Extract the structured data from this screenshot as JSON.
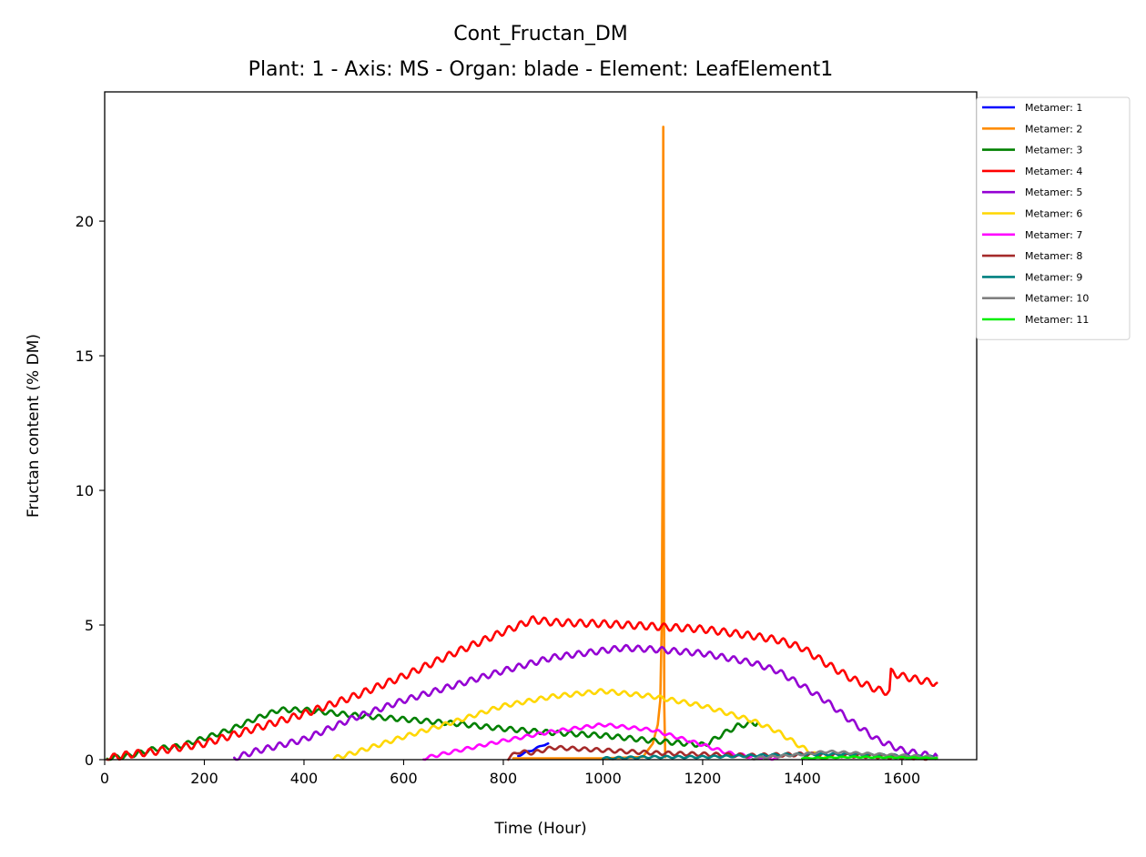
{
  "chart_data": {
    "type": "line",
    "title": "Cont_Fructan_DM",
    "subtitle": "Plant: 1 - Axis: MS - Organ: blade - Element: LeafElement1",
    "xlabel": "Time (Hour)",
    "ylabel": "Fructan content (% DM)",
    "xlim": [
      0,
      1750
    ],
    "ylim": [
      0,
      24.8
    ],
    "xticks": [
      0,
      200,
      400,
      600,
      800,
      1000,
      1200,
      1400,
      1600
    ],
    "yticks": [
      0,
      5,
      10,
      15,
      20
    ],
    "grid": false,
    "legend_position": "outside-top-right",
    "series": [
      {
        "name": "Metamer: 1",
        "color": "#0000ff",
        "oscillation": 0.03,
        "points": [
          [
            830,
            0.15
          ],
          [
            850,
            0.3
          ],
          [
            870,
            0.45
          ],
          [
            880,
            0.55
          ],
          [
            890,
            0.6
          ]
        ]
      },
      {
        "name": "Metamer: 2",
        "color": "#ff8c00",
        "oscillation": 0,
        "points": [
          [
            820,
            0.05
          ],
          [
            900,
            0.05
          ],
          [
            1000,
            0.05
          ],
          [
            1080,
            0.1
          ],
          [
            1100,
            0.6
          ],
          [
            1110,
            1.3
          ],
          [
            1115,
            2.2
          ],
          [
            1118,
            5.0
          ],
          [
            1120,
            12.0
          ],
          [
            1121,
            23.5
          ],
          [
            1122,
            10.0
          ],
          [
            1123,
            2.0
          ],
          [
            1125,
            0.1
          ]
        ]
      },
      {
        "name": "Metamer: 3",
        "color": "#008000",
        "oscillation": 0.09,
        "points": [
          [
            5,
            0.05
          ],
          [
            50,
            0.15
          ],
          [
            100,
            0.4
          ],
          [
            150,
            0.5
          ],
          [
            200,
            0.8
          ],
          [
            250,
            1.1
          ],
          [
            300,
            1.5
          ],
          [
            350,
            1.85
          ],
          [
            400,
            1.85
          ],
          [
            450,
            1.75
          ],
          [
            500,
            1.65
          ],
          [
            600,
            1.5
          ],
          [
            700,
            1.35
          ],
          [
            800,
            1.15
          ],
          [
            900,
            1.0
          ],
          [
            1000,
            0.9
          ],
          [
            1100,
            0.7
          ],
          [
            1200,
            0.55
          ],
          [
            1210,
            0.6
          ],
          [
            1240,
            0.95
          ],
          [
            1270,
            1.25
          ],
          [
            1300,
            1.35
          ],
          [
            1310,
            1.35
          ]
        ]
      },
      {
        "name": "Metamer: 4",
        "color": "#ff0000",
        "oscillation": 0.13,
        "points": [
          [
            5,
            0.05
          ],
          [
            50,
            0.2
          ],
          [
            100,
            0.3
          ],
          [
            200,
            0.6
          ],
          [
            300,
            1.15
          ],
          [
            400,
            1.7
          ],
          [
            500,
            2.35
          ],
          [
            600,
            3.1
          ],
          [
            700,
            3.95
          ],
          [
            800,
            4.75
          ],
          [
            860,
            5.2
          ],
          [
            900,
            5.1
          ],
          [
            1000,
            5.05
          ],
          [
            1100,
            4.95
          ],
          [
            1200,
            4.85
          ],
          [
            1300,
            4.6
          ],
          [
            1350,
            4.45
          ],
          [
            1400,
            4.15
          ],
          [
            1450,
            3.55
          ],
          [
            1500,
            3.0
          ],
          [
            1550,
            2.6
          ],
          [
            1575,
            2.5
          ],
          [
            1578,
            3.25
          ],
          [
            1600,
            3.1
          ],
          [
            1650,
            2.9
          ],
          [
            1670,
            2.85
          ]
        ]
      },
      {
        "name": "Metamer: 5",
        "color": "#9400d3",
        "oscillation": 0.11,
        "points": [
          [
            260,
            0.05
          ],
          [
            300,
            0.3
          ],
          [
            400,
            0.75
          ],
          [
            500,
            1.55
          ],
          [
            600,
            2.2
          ],
          [
            700,
            2.75
          ],
          [
            800,
            3.3
          ],
          [
            900,
            3.8
          ],
          [
            1000,
            4.05
          ],
          [
            1040,
            4.15
          ],
          [
            1100,
            4.1
          ],
          [
            1200,
            3.95
          ],
          [
            1300,
            3.6
          ],
          [
            1350,
            3.3
          ],
          [
            1400,
            2.75
          ],
          [
            1450,
            2.15
          ],
          [
            1500,
            1.4
          ],
          [
            1550,
            0.75
          ],
          [
            1600,
            0.35
          ],
          [
            1640,
            0.2
          ],
          [
            1670,
            0.15
          ]
        ]
      },
      {
        "name": "Metamer: 6",
        "color": "#ffd700",
        "oscillation": 0.08,
        "points": [
          [
            460,
            0.05
          ],
          [
            500,
            0.25
          ],
          [
            600,
            0.85
          ],
          [
            700,
            1.4
          ],
          [
            800,
            2.0
          ],
          [
            900,
            2.35
          ],
          [
            1000,
            2.55
          ],
          [
            1100,
            2.35
          ],
          [
            1200,
            2.0
          ],
          [
            1300,
            1.45
          ],
          [
            1350,
            1.05
          ],
          [
            1400,
            0.45
          ],
          [
            1430,
            0.15
          ],
          [
            1450,
            0.05
          ]
        ]
      },
      {
        "name": "Metamer: 7",
        "color": "#ff00ff",
        "oscillation": 0.06,
        "points": [
          [
            640,
            0.05
          ],
          [
            700,
            0.3
          ],
          [
            800,
            0.7
          ],
          [
            900,
            1.05
          ],
          [
            1000,
            1.3
          ],
          [
            1100,
            1.1
          ],
          [
            1200,
            0.55
          ],
          [
            1250,
            0.25
          ],
          [
            1300,
            0.1
          ],
          [
            1350,
            0.05
          ]
        ]
      },
      {
        "name": "Metamer: 8",
        "color": "#a52a2a",
        "oscillation": 0.07,
        "points": [
          [
            810,
            0.05
          ],
          [
            830,
            0.3
          ],
          [
            860,
            0.25
          ],
          [
            900,
            0.45
          ],
          [
            1000,
            0.35
          ],
          [
            1100,
            0.25
          ],
          [
            1200,
            0.2
          ],
          [
            1300,
            0.15
          ],
          [
            1400,
            0.2
          ],
          [
            1500,
            0.15
          ],
          [
            1600,
            0.1
          ],
          [
            1670,
            0.05
          ]
        ]
      },
      {
        "name": "Metamer: 9",
        "color": "#008080",
        "oscillation": 0.04,
        "points": [
          [
            1000,
            0.05
          ],
          [
            1100,
            0.1
          ],
          [
            1200,
            0.1
          ],
          [
            1300,
            0.15
          ],
          [
            1400,
            0.2
          ],
          [
            1500,
            0.2
          ],
          [
            1600,
            0.15
          ],
          [
            1670,
            0.1
          ]
        ]
      },
      {
        "name": "Metamer: 10",
        "color": "#808080",
        "oscillation": 0.04,
        "points": [
          [
            1300,
            0.05
          ],
          [
            1400,
            0.2
          ],
          [
            1450,
            0.3
          ],
          [
            1500,
            0.25
          ],
          [
            1600,
            0.15
          ],
          [
            1670,
            0.1
          ]
        ]
      },
      {
        "name": "Metamer: 11",
        "color": "#00ee00",
        "oscillation": 0.02,
        "points": [
          [
            1400,
            0.05
          ],
          [
            1500,
            0.1
          ],
          [
            1600,
            0.08
          ],
          [
            1670,
            0.05
          ]
        ]
      }
    ]
  }
}
